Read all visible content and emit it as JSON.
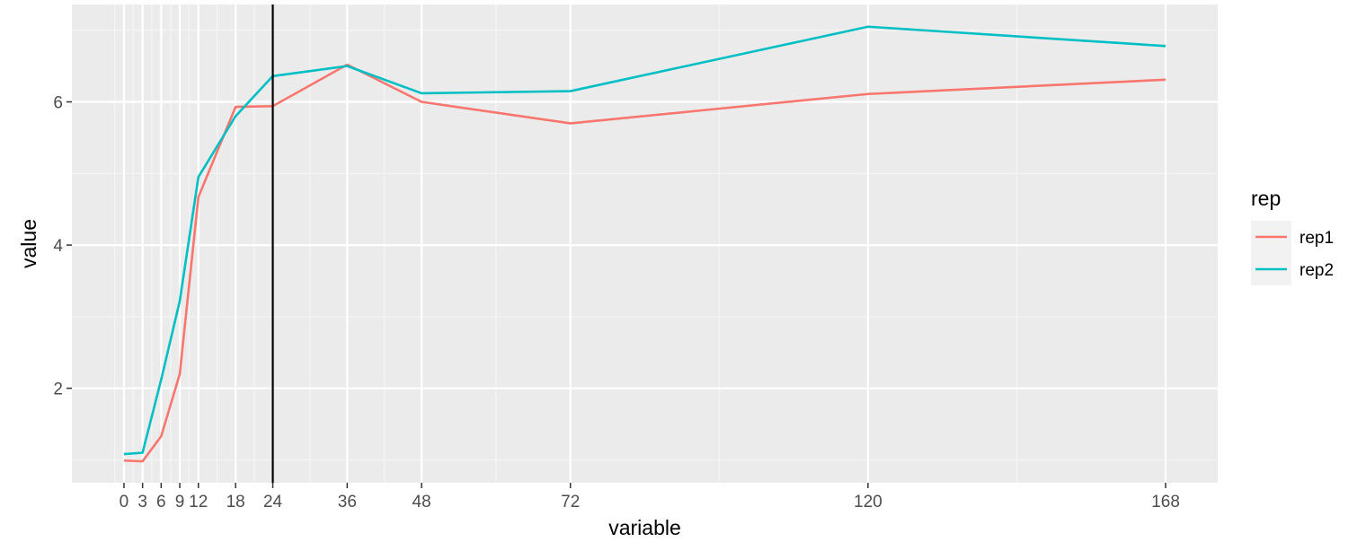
{
  "chart_data": {
    "type": "line",
    "xlabel": "variable",
    "ylabel": "value",
    "x_ticks": [
      0,
      3,
      6,
      9,
      12,
      18,
      24,
      36,
      48,
      72,
      120,
      168
    ],
    "x_tick_labels": [
      "0",
      "3",
      "6",
      "9",
      "12",
      "18",
      "24",
      "36",
      "48",
      "72",
      "120",
      "168"
    ],
    "y_ticks": [
      2,
      4,
      6
    ],
    "y_tick_labels": [
      "2",
      "4",
      "6"
    ],
    "xlim": [
      -8.4,
      176.4
    ],
    "ylim": [
      0.68,
      7.36
    ],
    "grid": true,
    "vline": {
      "x": 24,
      "color": "#000000"
    },
    "legend": {
      "title": "rep",
      "position": "right"
    },
    "x": [
      0,
      3,
      6,
      9,
      12,
      18,
      24,
      36,
      48,
      72,
      120,
      168
    ],
    "series": [
      {
        "name": "rep1",
        "color": "#F8766D",
        "values": [
          0.99,
          0.98,
          1.33,
          2.2,
          4.67,
          5.93,
          5.94,
          6.52,
          6.0,
          5.7,
          6.11,
          6.31
        ]
      },
      {
        "name": "rep2",
        "color": "#00BFC4",
        "values": [
          1.08,
          1.1,
          2.12,
          3.22,
          4.95,
          5.8,
          6.36,
          6.5,
          6.12,
          6.15,
          7.05,
          6.78
        ]
      }
    ]
  }
}
